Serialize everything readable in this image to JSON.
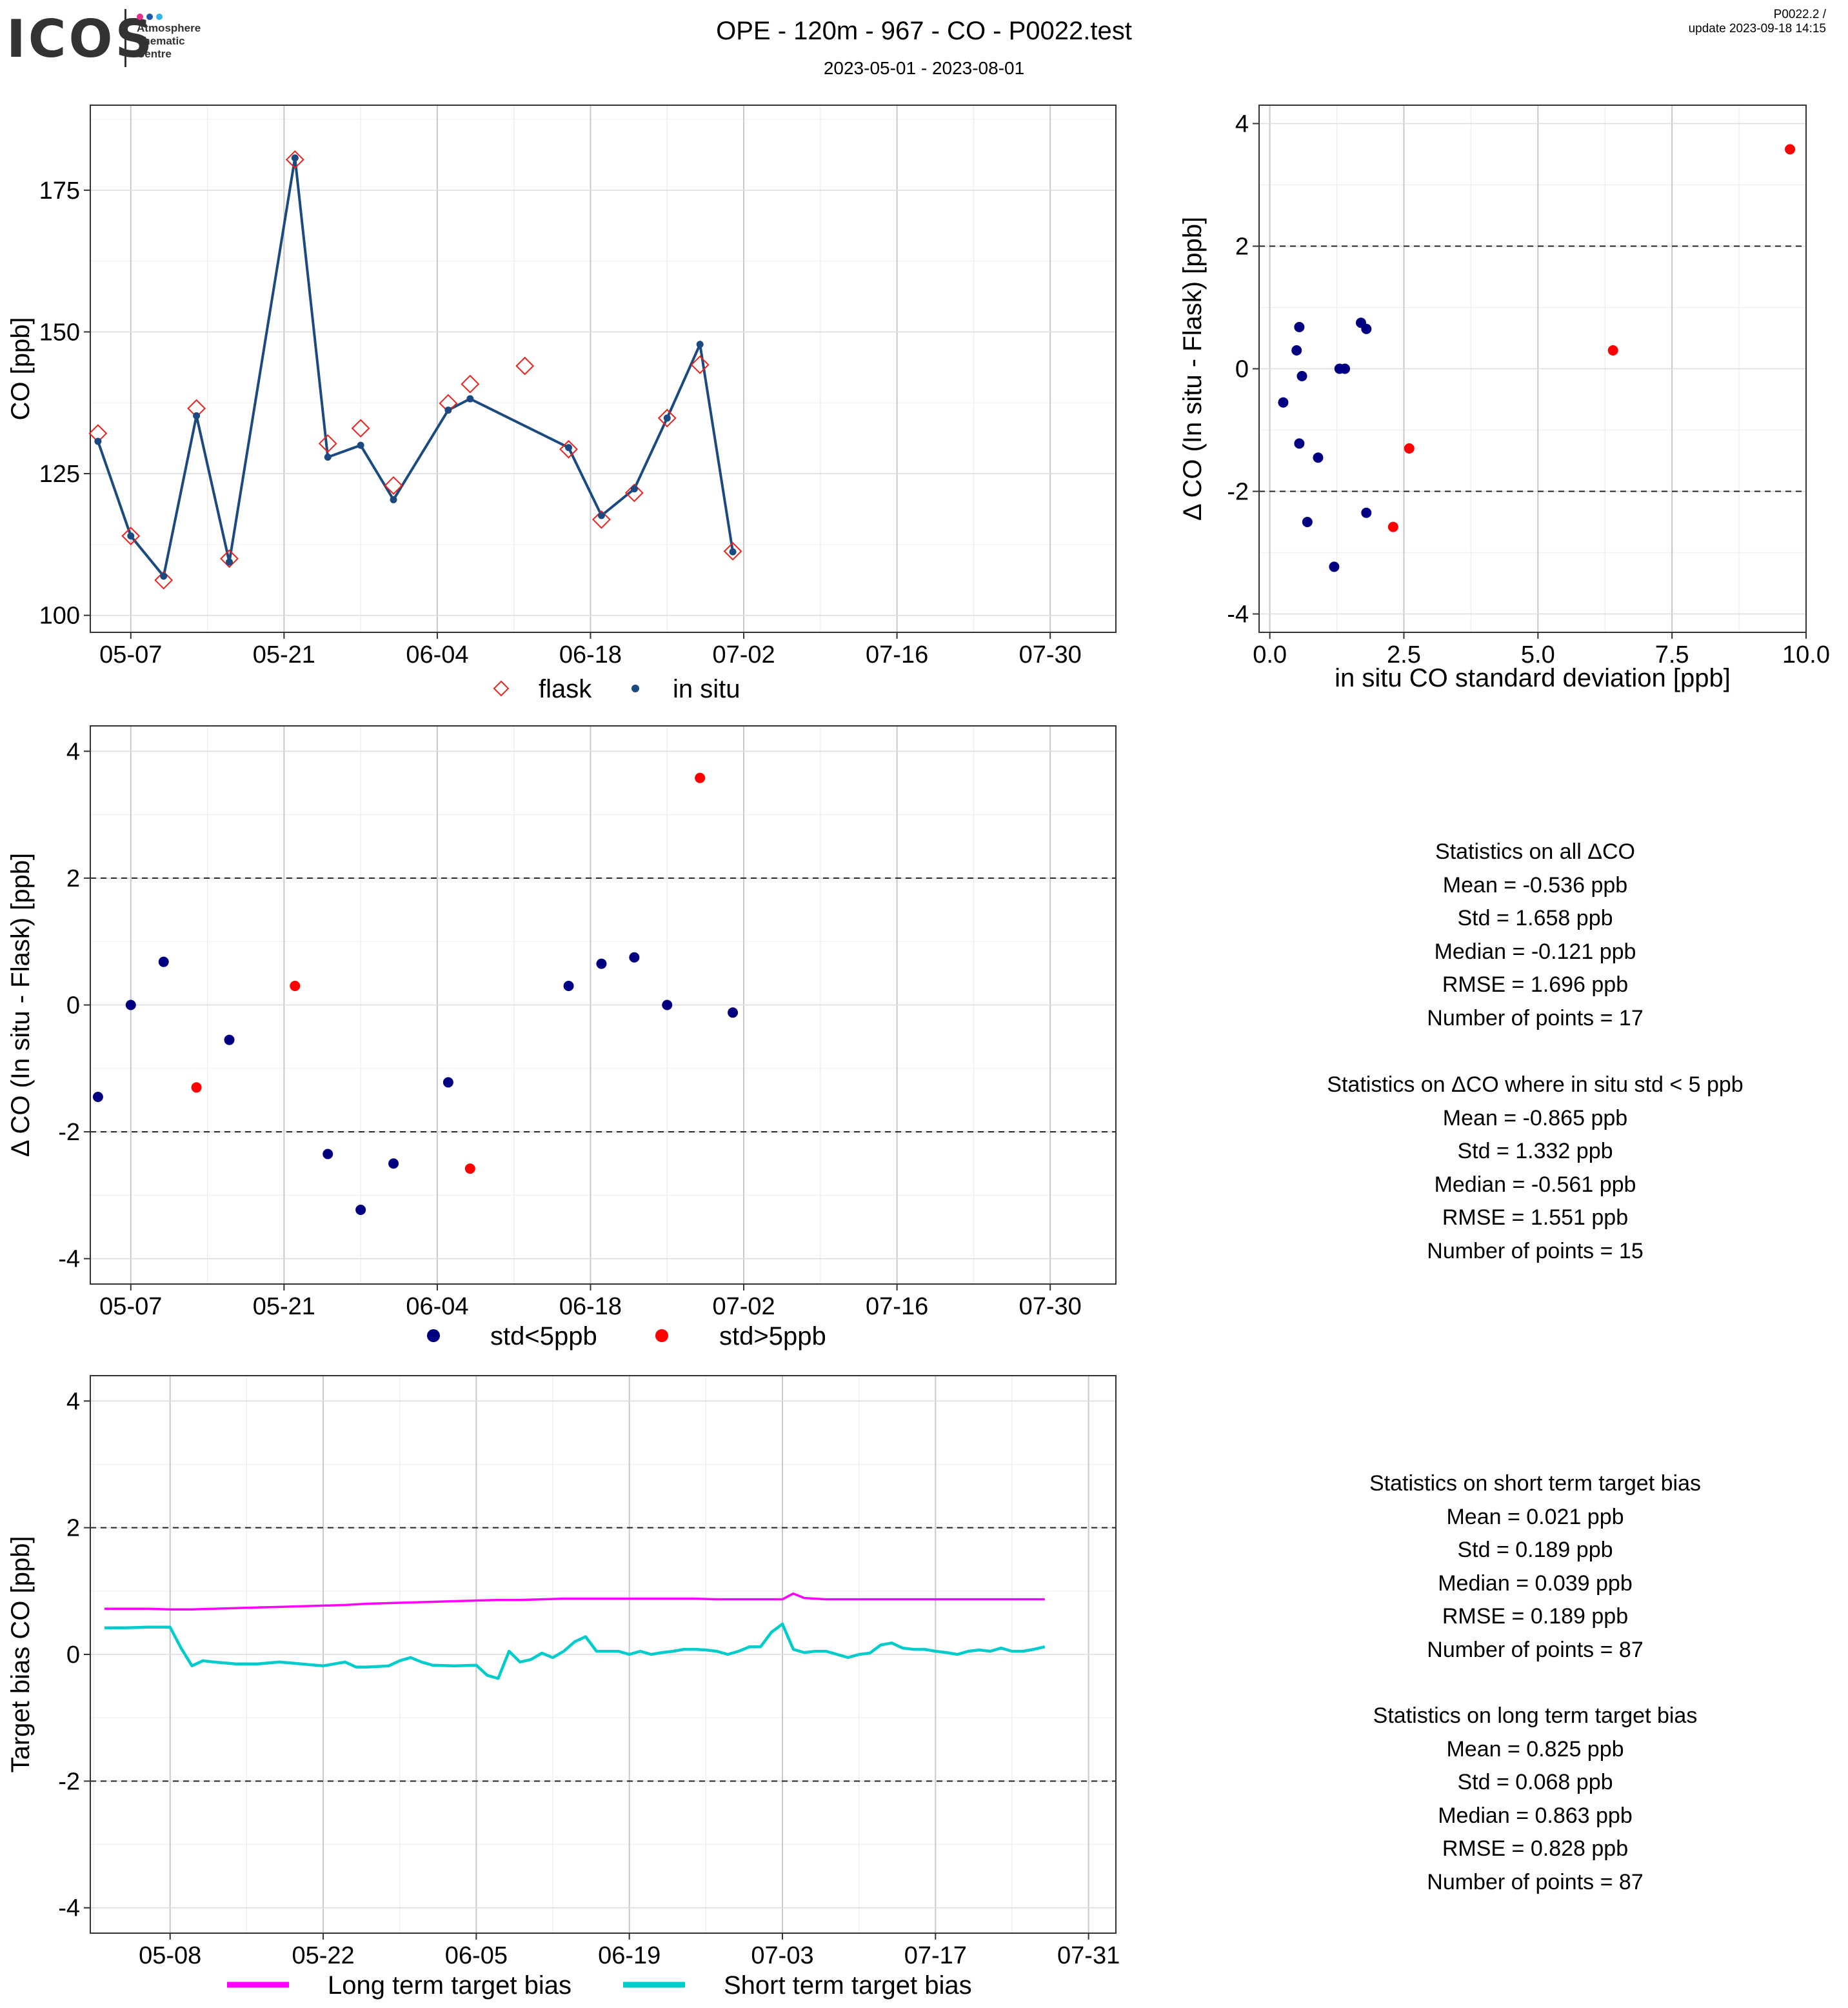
{
  "header": {
    "title": "OPE - 120m - 967 - CO - P0022.test",
    "date_range": "2023-05-01 - 2023-08-01",
    "version": "P0022.2 /",
    "update": "update  2023-09-18 14:15"
  },
  "logo": {
    "name": "ICOS",
    "subtitle_lines": [
      "Atmosphere",
      "Thematic",
      "Centre"
    ],
    "dot_colors": [
      "#e8308a",
      "#1a5aa8",
      "#33b5e5"
    ]
  },
  "colors": {
    "flask": "#e8231c",
    "in_situ": "#1a4a80",
    "low_std": "#000080",
    "high_std": "#ff0000",
    "long_term": "#ff00ff",
    "short_term": "#00cccc"
  },
  "chart_data": [
    {
      "id": "co_timeseries",
      "type": "line",
      "xlabel": "",
      "ylabel": "CO [ppb]",
      "x_ticks": [
        "05-07",
        "05-21",
        "06-04",
        "06-18",
        "07-02",
        "07-16",
        "07-30"
      ],
      "x_tick_days": [
        6,
        20,
        34,
        48,
        62,
        76,
        90
      ],
      "xlim": [
        2.3,
        96
      ],
      "y_ticks": [
        100,
        125,
        150,
        175
      ],
      "ylim": [
        97,
        190
      ],
      "legend_position": "bottom",
      "series": [
        {
          "name": "flask",
          "marker": "open-diamond",
          "points": [
            {
              "day": 3,
              "value": 132.1
            },
            {
              "day": 6,
              "value": 114.0
            },
            {
              "day": 9,
              "value": 106.2
            },
            {
              "day": 12,
              "value": 136.5
            },
            {
              "day": 15,
              "value": 110.0
            },
            {
              "day": 21,
              "value": 180.4
            },
            {
              "day": 24,
              "value": 130.3
            },
            {
              "day": 27,
              "value": 133.0
            },
            {
              "day": 30,
              "value": 122.9
            },
            {
              "day": 35,
              "value": 137.4
            },
            {
              "day": 37,
              "value": 140.8
            },
            {
              "day": 42,
              "value": 144.0
            },
            {
              "day": 46,
              "value": 129.3
            },
            {
              "day": 49,
              "value": 116.9
            },
            {
              "day": 52,
              "value": 121.6
            },
            {
              "day": 55,
              "value": 134.8
            },
            {
              "day": 58,
              "value": 144.2
            },
            {
              "day": 61,
              "value": 111.3
            }
          ]
        },
        {
          "name": "in situ",
          "marker": "dot-line",
          "points": [
            {
              "day": 3,
              "value": 130.7
            },
            {
              "day": 6,
              "value": 114.0
            },
            {
              "day": 9,
              "value": 106.9
            },
            {
              "day": 12,
              "value": 135.2
            },
            {
              "day": 15,
              "value": 109.4
            },
            {
              "day": 21,
              "value": 180.7
            },
            {
              "day": 24,
              "value": 127.9
            },
            {
              "day": 27,
              "value": 130.0
            },
            {
              "day": 30,
              "value": 120.4
            },
            {
              "day": 35,
              "value": 136.2
            },
            {
              "day": 37,
              "value": 138.2
            },
            {
              "day": 46,
              "value": 129.6
            },
            {
              "day": 49,
              "value": 117.6
            },
            {
              "day": 52,
              "value": 122.3
            },
            {
              "day": 55,
              "value": 134.8
            },
            {
              "day": 58,
              "value": 147.8
            },
            {
              "day": 61,
              "value": 111.2
            }
          ]
        }
      ]
    },
    {
      "id": "delta_vs_std",
      "type": "scatter",
      "xlabel": "in situ CO standard deviation [ppb]",
      "ylabel": "Δ CO (In situ - Flask) [ppb]",
      "x_ticks": [
        "0.0",
        "2.5",
        "5.0",
        "7.5",
        "10.0"
      ],
      "xlim": [
        -0.2,
        10.0
      ],
      "y_ticks": [
        "-4",
        "-2",
        "0",
        "2",
        "4"
      ],
      "ylim": [
        -4.3,
        4.3
      ],
      "reference_lines": [
        2,
        -2
      ],
      "points": [
        {
          "x": 0.25,
          "y": -0.55,
          "high": false
        },
        {
          "x": 0.5,
          "y": 0.3,
          "high": false
        },
        {
          "x": 0.55,
          "y": 0.68,
          "high": false
        },
        {
          "x": 0.55,
          "y": -1.22,
          "high": false
        },
        {
          "x": 0.6,
          "y": -0.12,
          "high": false
        },
        {
          "x": 0.7,
          "y": -2.5,
          "high": false
        },
        {
          "x": 0.9,
          "y": -1.45,
          "high": false
        },
        {
          "x": 1.2,
          "y": -3.23,
          "high": false
        },
        {
          "x": 1.3,
          "y": 0.0,
          "high": false
        },
        {
          "x": 1.4,
          "y": 0.0,
          "high": false
        },
        {
          "x": 1.7,
          "y": 0.75,
          "high": false
        },
        {
          "x": 1.8,
          "y": 0.65,
          "high": false
        },
        {
          "x": 1.8,
          "y": -2.35,
          "high": false
        },
        {
          "x": 2.3,
          "y": -2.58,
          "high": true
        },
        {
          "x": 2.6,
          "y": -1.3,
          "high": true
        },
        {
          "x": 6.4,
          "y": 0.3,
          "high": true
        },
        {
          "x": 9.7,
          "y": 3.58,
          "high": true
        }
      ]
    },
    {
      "id": "delta_timeseries",
      "type": "scatter",
      "xlabel": "",
      "ylabel": "Δ CO (In situ - Flask) [ppb]",
      "x_ticks": [
        "05-07",
        "05-21",
        "06-04",
        "06-18",
        "07-02",
        "07-16",
        "07-30"
      ],
      "x_tick_days": [
        6,
        20,
        34,
        48,
        62,
        76,
        90
      ],
      "xlim": [
        2.3,
        96
      ],
      "y_ticks": [
        "-4",
        "-2",
        "0",
        "2",
        "4"
      ],
      "ylim": [
        -4.4,
        4.4
      ],
      "reference_lines": [
        2,
        -2
      ],
      "legend_position": "bottom",
      "legend": [
        "std<5ppb",
        "std>5ppb"
      ],
      "points": [
        {
          "day": 3,
          "value": -1.45,
          "high": false
        },
        {
          "day": 6,
          "value": 0.0,
          "high": false
        },
        {
          "day": 9,
          "value": 0.68,
          "high": false
        },
        {
          "day": 12,
          "value": -1.3,
          "high": true
        },
        {
          "day": 15,
          "value": -0.55,
          "high": false
        },
        {
          "day": 21,
          "value": 0.3,
          "high": true
        },
        {
          "day": 24,
          "value": -2.35,
          "high": false
        },
        {
          "day": 27,
          "value": -3.23,
          "high": false
        },
        {
          "day": 30,
          "value": -2.5,
          "high": false
        },
        {
          "day": 35,
          "value": -1.22,
          "high": false
        },
        {
          "day": 37,
          "value": -2.58,
          "high": true
        },
        {
          "day": 46,
          "value": 0.3,
          "high": false
        },
        {
          "day": 49,
          "value": 0.65,
          "high": false
        },
        {
          "day": 52,
          "value": 0.75,
          "high": false
        },
        {
          "day": 55,
          "value": 0.0,
          "high": false
        },
        {
          "day": 58,
          "value": 3.58,
          "high": true
        },
        {
          "day": 61,
          "value": -0.12,
          "high": false
        }
      ]
    },
    {
      "id": "target_bias",
      "type": "line",
      "xlabel": "",
      "ylabel": "Target bias CO [ppb]",
      "x_ticks": [
        "05-08",
        "05-22",
        "06-05",
        "06-19",
        "07-03",
        "07-17",
        "07-31"
      ],
      "x_tick_days": [
        7,
        21,
        35,
        49,
        63,
        77,
        91
      ],
      "xlim": [
        -0.3,
        93.5
      ],
      "y_ticks": [
        "-4",
        "-2",
        "0",
        "2",
        "4"
      ],
      "ylim": [
        -4.4,
        4.4
      ],
      "reference_lines": [
        2,
        -2
      ],
      "legend_position": "bottom",
      "series": [
        {
          "name": "Long term target bias",
          "days": [
            1,
            3,
            5,
            7,
            9,
            11,
            13,
            15,
            17,
            19,
            21,
            23,
            25,
            27,
            29,
            31,
            33,
            35,
            37,
            39,
            41,
            43,
            45,
            47,
            49,
            51,
            53,
            55,
            57,
            59,
            61,
            63,
            64,
            65,
            67,
            69,
            71,
            73,
            75,
            77,
            79,
            81,
            83,
            85,
            87
          ],
          "values": [
            0.72,
            0.72,
            0.72,
            0.71,
            0.71,
            0.72,
            0.73,
            0.74,
            0.75,
            0.76,
            0.77,
            0.78,
            0.8,
            0.81,
            0.82,
            0.83,
            0.84,
            0.85,
            0.86,
            0.86,
            0.87,
            0.88,
            0.88,
            0.88,
            0.88,
            0.88,
            0.88,
            0.88,
            0.87,
            0.87,
            0.87,
            0.87,
            0.96,
            0.89,
            0.87,
            0.87,
            0.87,
            0.87,
            0.87,
            0.87,
            0.87,
            0.87,
            0.87,
            0.87,
            0.87
          ]
        },
        {
          "name": "Short term target bias",
          "days": [
            1,
            3,
            5,
            7,
            8,
            9,
            10,
            11,
            13,
            15,
            17,
            19,
            21,
            23,
            24,
            25,
            27,
            28,
            29,
            30,
            31,
            33,
            35,
            36,
            37,
            38,
            39,
            40,
            41,
            42,
            43,
            44,
            45,
            46,
            47,
            48,
            49,
            50,
            51,
            52,
            53,
            54,
            55,
            56,
            57,
            58,
            59,
            60,
            61,
            62,
            63,
            64,
            65,
            66,
            67,
            68,
            69,
            70,
            71,
            72,
            73,
            74,
            75,
            76,
            77,
            78,
            79,
            80,
            81,
            82,
            83,
            84,
            85,
            86,
            87
          ],
          "values": [
            0.42,
            0.42,
            0.43,
            0.43,
            0.1,
            -0.18,
            -0.1,
            -0.12,
            -0.15,
            -0.15,
            -0.12,
            -0.15,
            -0.18,
            -0.12,
            -0.2,
            -0.2,
            -0.18,
            -0.1,
            -0.05,
            -0.12,
            -0.17,
            -0.18,
            -0.17,
            -0.33,
            -0.38,
            0.05,
            -0.12,
            -0.08,
            0.02,
            -0.05,
            0.05,
            0.2,
            0.28,
            0.05,
            0.05,
            0.05,
            0.0,
            0.05,
            0.0,
            0.03,
            0.05,
            0.08,
            0.08,
            0.07,
            0.05,
            0.0,
            0.05,
            0.12,
            0.12,
            0.35,
            0.48,
            0.08,
            0.03,
            0.05,
            0.05,
            0.0,
            -0.05,
            0.0,
            0.02,
            0.15,
            0.18,
            0.1,
            0.08,
            0.08,
            0.05,
            0.03,
            0.0,
            0.05,
            0.07,
            0.05,
            0.1,
            0.05,
            0.05,
            0.08,
            0.12
          ]
        }
      ]
    }
  ],
  "stats": {
    "all_delta": {
      "title": "Statistics on all ΔCO",
      "lines": [
        "Mean =  -0.536 ppb",
        "Std =  1.658 ppb",
        "Median =  -0.121 ppb",
        "RMSE =  1.696 ppb",
        "Number of points =  17"
      ]
    },
    "filtered_delta": {
      "title": "Statistics on ΔCO where in situ std < 5 ppb",
      "lines": [
        "Mean =  -0.865 ppb",
        "Std =  1.332 ppb",
        "Median =  -0.561 ppb",
        "RMSE =  1.551 ppb",
        "Number of points =  15"
      ]
    },
    "short_term": {
      "title": "Statistics on short term target bias",
      "lines": [
        "Mean =  0.021 ppb",
        "Std =  0.189 ppb",
        "Median =  0.039 ppb",
        "RMSE =  0.189 ppb",
        "Number of points =  87"
      ]
    },
    "long_term": {
      "title": "Statistics on long term target bias",
      "lines": [
        "Mean =  0.825 ppb",
        "Std =  0.068 ppb",
        "Median =  0.863 ppb",
        "RMSE =  0.828 ppb",
        "Number of points =  87"
      ]
    }
  }
}
